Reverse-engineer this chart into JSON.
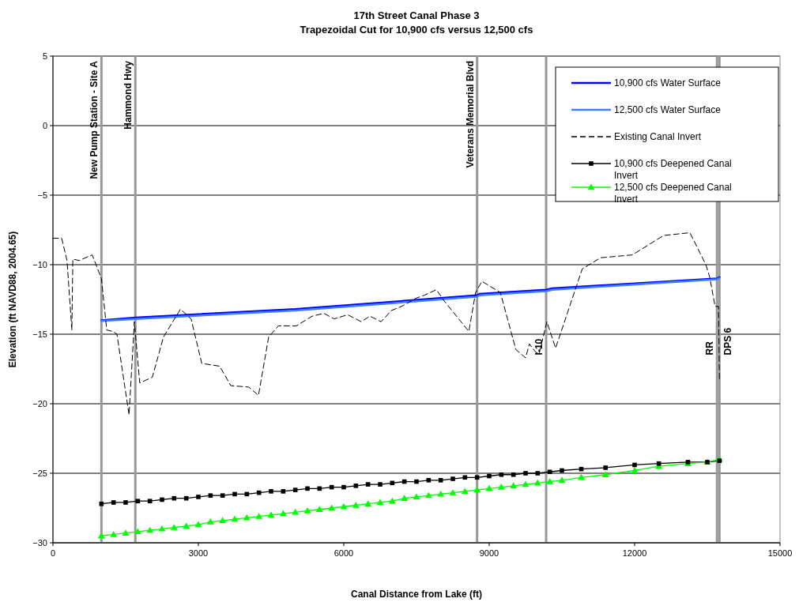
{
  "chart_data": {
    "type": "line",
    "title": "17th Street Canal Phase 3",
    "subtitle": "Trapezoidal Cut for 10,900 cfs versus 12,500 cfs",
    "xlabel": "Canal Distance from Lake (ft)",
    "ylabel": "Elevation (ft NAVD88, 2004.65)",
    "xlim": [
      0,
      15000
    ],
    "xticks": [
      0,
      3000,
      6000,
      9000,
      12000,
      15000
    ],
    "ylim": [
      -30,
      5
    ],
    "yticks": [
      -30,
      -25,
      -20,
      -15,
      -10,
      -5,
      0,
      5
    ],
    "grid": "y",
    "legend": "top right",
    "ref_lines": [
      {
        "axis": "x",
        "value": 1000,
        "label": "New Pump Station - Site A",
        "color": "#999999"
      },
      {
        "axis": "x",
        "value": 1700,
        "label": "Hammond Hwy",
        "color": "#999999"
      },
      {
        "axis": "x",
        "value": 8750,
        "label": "Veterans Memorial Blvd",
        "color": "#999999"
      },
      {
        "axis": "x",
        "value": 10175,
        "label": "I-10",
        "color": "#999999"
      },
      {
        "axis": "x",
        "value": 13700,
        "label": "RR",
        "color": "#999999"
      },
      {
        "axis": "x",
        "value": 13750,
        "label": "DPS 6",
        "color": "#999999"
      }
    ],
    "series": [
      {
        "name": "10,900 cfs Water Surface",
        "color": "#0000ff",
        "marker": "none",
        "line_style": "solid",
        "x": [
          1000,
          1700,
          5000,
          8750,
          8800,
          10175,
          10300,
          13700,
          13750
        ],
        "values": [
          -14.0,
          -13.8,
          -13.2,
          -12.2,
          -12.1,
          -11.8,
          -11.7,
          -11.0,
          -10.9
        ]
      },
      {
        "name": "12,500 cfs Water Surface",
        "color": "#3f7fff",
        "marker": "none",
        "line_style": "solid",
        "x": [
          1000,
          1700,
          5000,
          8750,
          8800,
          10175,
          10300,
          13700,
          13750
        ],
        "values": [
          -14.05,
          -13.9,
          -13.3,
          -12.3,
          -12.2,
          -11.9,
          -11.8,
          -11.05,
          -10.95
        ]
      },
      {
        "name": "Existing Canal Invert",
        "color": "#000000",
        "marker": "none",
        "line_style": "dashed",
        "x": [
          0,
          180,
          290,
          390,
          410,
          540,
          810,
          1000,
          1110,
          1240,
          1320,
          1570,
          1680,
          1790,
          2050,
          2280,
          2630,
          2850,
          3070,
          3440,
          3670,
          4040,
          4240,
          4450,
          4650,
          5020,
          5350,
          5590,
          5800,
          6080,
          6360,
          6540,
          6770,
          6980,
          7190,
          7500,
          7660,
          7910,
          8070,
          8580,
          8720,
          8850,
          9230,
          9550,
          9750,
          9830,
          9960,
          10030,
          10190,
          10370,
          10920,
          11300,
          11950,
          12600,
          13140,
          13470,
          13550,
          13660,
          13730,
          13750
        ],
        "values": [
          -8.1,
          -8.1,
          -9.7,
          -14.7,
          -9.6,
          -9.7,
          -9.3,
          -11.0,
          -14.7,
          -14.8,
          -15.0,
          -20.8,
          -14.1,
          -18.5,
          -18.1,
          -15.2,
          -13.2,
          -13.9,
          -17.1,
          -17.3,
          -18.7,
          -18.8,
          -19.4,
          -15.2,
          -14.4,
          -14.4,
          -13.7,
          -13.5,
          -13.9,
          -13.6,
          -14.1,
          -13.7,
          -14.1,
          -13.3,
          -13.0,
          -12.4,
          -12.2,
          -11.8,
          -12.6,
          -14.8,
          -12.0,
          -11.2,
          -12.0,
          -16.1,
          -16.7,
          -15.7,
          -16.3,
          -16.4,
          -14.1,
          -16.0,
          -10.3,
          -9.5,
          -9.3,
          -7.9,
          -7.7,
          -10.0,
          -10.9,
          -13.0,
          -13.0,
          -18.4
        ]
      },
      {
        "name": "10,900 cfs Deepened Canal Invert",
        "color": "#000000",
        "marker": "square",
        "line_style": "solid",
        "x": [
          1000,
          1250,
          1500,
          1750,
          2000,
          2250,
          2500,
          2750,
          3000,
          3250,
          3500,
          3750,
          4000,
          4250,
          4500,
          4750,
          5000,
          5250,
          5500,
          5750,
          6000,
          6250,
          6500,
          6750,
          7000,
          7250,
          7500,
          7750,
          8000,
          8250,
          8500,
          8750,
          9000,
          9250,
          9500,
          9750,
          10000,
          10250,
          10500,
          10900,
          11400,
          12000,
          12500,
          13100,
          13500,
          13750
        ],
        "values": [
          -27.2,
          -27.1,
          -27.1,
          -27.0,
          -27.0,
          -26.9,
          -26.8,
          -26.8,
          -26.7,
          -26.6,
          -26.6,
          -26.5,
          -26.5,
          -26.4,
          -26.3,
          -26.3,
          -26.2,
          -26.1,
          -26.1,
          -26.0,
          -26.0,
          -25.9,
          -25.8,
          -25.8,
          -25.7,
          -25.6,
          -25.6,
          -25.5,
          -25.5,
          -25.4,
          -25.3,
          -25.3,
          -25.2,
          -25.1,
          -25.1,
          -25.0,
          -25.0,
          -24.9,
          -24.8,
          -24.7,
          -24.6,
          -24.4,
          -24.3,
          -24.2,
          -24.2,
          -24.1
        ]
      },
      {
        "name": "12,500 cfs Deepened Canal Invert",
        "color": "#00ff00",
        "marker": "triangle",
        "line_style": "solid",
        "x": [
          1000,
          1250,
          1500,
          1750,
          2000,
          2250,
          2500,
          2750,
          3000,
          3250,
          3500,
          3750,
          4000,
          4250,
          4500,
          4750,
          5000,
          5250,
          5500,
          5750,
          6000,
          6250,
          6500,
          6750,
          7000,
          7250,
          7500,
          7750,
          8000,
          8250,
          8500,
          8750,
          9000,
          9250,
          9500,
          9750,
          10000,
          10250,
          10500,
          10900,
          11400,
          12000,
          12500,
          13100,
          13500,
          13750
        ],
        "values": [
          -29.5,
          -29.4,
          -29.3,
          -29.2,
          -29.1,
          -29.0,
          -28.9,
          -28.8,
          -28.7,
          -28.5,
          -28.4,
          -28.3,
          -28.2,
          -28.1,
          -28.0,
          -27.9,
          -27.8,
          -27.7,
          -27.6,
          -27.5,
          -27.4,
          -27.3,
          -27.2,
          -27.1,
          -27.0,
          -26.8,
          -26.7,
          -26.6,
          -26.5,
          -26.4,
          -26.3,
          -26.2,
          -26.1,
          -26.0,
          -25.9,
          -25.8,
          -25.7,
          -25.6,
          -25.5,
          -25.3,
          -25.1,
          -24.8,
          -24.5,
          -24.3,
          -24.2,
          -24.0
        ]
      }
    ]
  }
}
